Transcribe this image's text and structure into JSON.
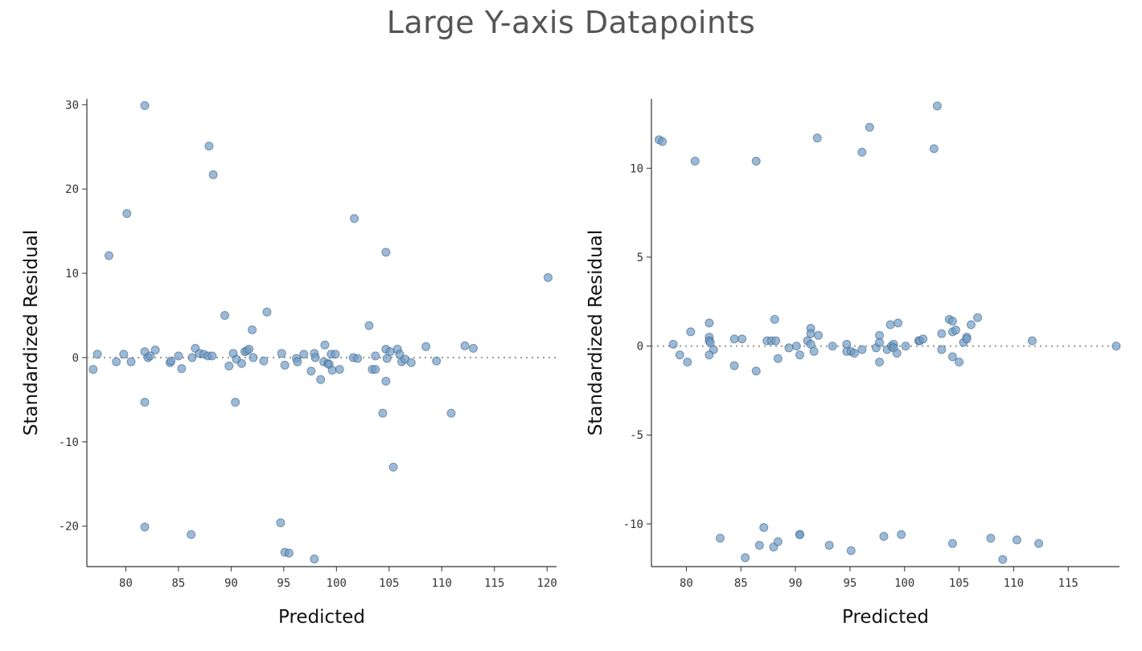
{
  "title": "Large Y-axis Datapoints",
  "colors": {
    "point_fill": "#6f9cc8",
    "point_stroke": "#3f5f80",
    "zero_line": "#999999",
    "axis": "#333333",
    "title": "#555555"
  },
  "chart_data": [
    {
      "type": "scatter",
      "xlabel": "Predicted",
      "ylabel": "Standardized Residual",
      "xlim": [
        76.3,
        120.9
      ],
      "ylim": [
        -24.8,
        30.7
      ],
      "xticks": [
        80,
        85,
        90,
        95,
        100,
        105,
        110,
        115,
        120
      ],
      "yticks": [
        -20,
        -10,
        0,
        10,
        20,
        30
      ],
      "reference_line": {
        "y": 0,
        "style": "dotted"
      },
      "grid": false,
      "points": [
        [
          76.9,
          -1.4
        ],
        [
          77.3,
          0.4
        ],
        [
          78.4,
          12.1
        ],
        [
          79.1,
          -0.5
        ],
        [
          79.8,
          0.4
        ],
        [
          80.1,
          17.1
        ],
        [
          80.5,
          -0.5
        ],
        [
          81.8,
          29.9
        ],
        [
          81.8,
          0.7
        ],
        [
          81.8,
          -5.3
        ],
        [
          81.8,
          -20.1
        ],
        [
          82.1,
          0
        ],
        [
          82.3,
          0.2
        ],
        [
          82.8,
          0.9
        ],
        [
          84.2,
          -0.6
        ],
        [
          84.3,
          -0.4
        ],
        [
          85,
          0.2
        ],
        [
          85.3,
          -1.3
        ],
        [
          86.2,
          -21
        ],
        [
          86.3,
          0
        ],
        [
          86.6,
          1.1
        ],
        [
          87,
          0.5
        ],
        [
          87.4,
          0.4
        ],
        [
          87.8,
          0.2
        ],
        [
          87.9,
          25.1
        ],
        [
          88.2,
          0.2
        ],
        [
          88.3,
          21.7
        ],
        [
          89.4,
          5
        ],
        [
          89.8,
          -1
        ],
        [
          90.2,
          0.5
        ],
        [
          90.4,
          -5.3
        ],
        [
          90.5,
          -0.2
        ],
        [
          91,
          -0.7
        ],
        [
          91.3,
          0.7
        ],
        [
          91.5,
          0.8
        ],
        [
          91.7,
          1
        ],
        [
          92,
          3.3
        ],
        [
          92.1,
          0
        ],
        [
          93.1,
          -0.4
        ],
        [
          93.4,
          5.4
        ],
        [
          94.7,
          -19.6
        ],
        [
          94.8,
          0.5
        ],
        [
          95.1,
          -0.9
        ],
        [
          95.1,
          -23.1
        ],
        [
          95.5,
          -23.2
        ],
        [
          96.2,
          -0.1
        ],
        [
          96.3,
          -0.5
        ],
        [
          96.9,
          0.4
        ],
        [
          97.6,
          -1.6
        ],
        [
          97.9,
          -23.9
        ],
        [
          97.9,
          0.5
        ],
        [
          98,
          0
        ],
        [
          98.5,
          -2.6
        ],
        [
          98.8,
          -0.5
        ],
        [
          98.9,
          1.5
        ],
        [
          99.2,
          -0.7
        ],
        [
          99.3,
          -0.8
        ],
        [
          99.5,
          0.4
        ],
        [
          99.6,
          -1.5
        ],
        [
          99.9,
          0.4
        ],
        [
          100.3,
          -1.4
        ],
        [
          101.6,
          0
        ],
        [
          101.7,
          16.5
        ],
        [
          102,
          -0.1
        ],
        [
          103.1,
          3.8
        ],
        [
          103.4,
          -1.4
        ],
        [
          103.7,
          -1.4
        ],
        [
          103.7,
          0.2
        ],
        [
          104.4,
          -6.6
        ],
        [
          104.7,
          1
        ],
        [
          104.7,
          12.5
        ],
        [
          104.7,
          -2.8
        ],
        [
          104.8,
          -0.1
        ],
        [
          105.1,
          0.7
        ],
        [
          105.4,
          -13
        ],
        [
          105.8,
          1
        ],
        [
          106,
          0.4
        ],
        [
          106.2,
          -0.5
        ],
        [
          106.5,
          -0.2
        ],
        [
          107.1,
          -0.6
        ],
        [
          108.5,
          1.3
        ],
        [
          109.5,
          -0.4
        ],
        [
          110.9,
          -6.6
        ],
        [
          112.2,
          1.4
        ],
        [
          113,
          1.1
        ],
        [
          120.1,
          9.5
        ]
      ]
    },
    {
      "type": "scatter",
      "xlabel": "Predicted",
      "ylabel": "Standardized Residual",
      "xlim": [
        76.8,
        119.7
      ],
      "ylim": [
        -12.4,
        13.9
      ],
      "xticks": [
        80,
        85,
        90,
        95,
        100,
        105,
        110,
        115
      ],
      "yticks": [
        -10,
        -5,
        0,
        5,
        10
      ],
      "reference_line": {
        "y": 0,
        "style": "dotted"
      },
      "grid": false,
      "points": [
        [
          77.5,
          11.6
        ],
        [
          77.8,
          11.5
        ],
        [
          80.8,
          10.4
        ],
        [
          86.4,
          10.4
        ],
        [
          92.0,
          11.7
        ],
        [
          96.1,
          10.9
        ],
        [
          96.8,
          12.3
        ],
        [
          102.7,
          11.1
        ],
        [
          103.0,
          13.5
        ],
        [
          83.1,
          -10.8
        ],
        [
          85.4,
          -11.9
        ],
        [
          86.7,
          -11.2
        ],
        [
          87.1,
          -10.2
        ],
        [
          88.0,
          -11.3
        ],
        [
          88.4,
          -11.0
        ],
        [
          90.4,
          -10.6
        ],
        [
          90.4,
          -10.6
        ],
        [
          93.1,
          -11.2
        ],
        [
          95.1,
          -11.5
        ],
        [
          98.1,
          -10.7
        ],
        [
          99.7,
          -10.6
        ],
        [
          104.4,
          -11.1
        ],
        [
          107.9,
          -10.8
        ],
        [
          109.0,
          -12.0
        ],
        [
          110.3,
          -10.9
        ],
        [
          112.3,
          -11.1
        ],
        [
          78.8,
          0.1
        ],
        [
          79.4,
          -0.5
        ],
        [
          80.1,
          -0.9
        ],
        [
          80.4,
          0.8
        ],
        [
          82.1,
          1.3
        ],
        [
          82.1,
          0.5
        ],
        [
          82.1,
          0.3
        ],
        [
          82.2,
          0.2
        ],
        [
          82.5,
          -0.2
        ],
        [
          82.1,
          -0.5
        ],
        [
          84.4,
          0.4
        ],
        [
          84.4,
          -1.1
        ],
        [
          85.1,
          0.4
        ],
        [
          86.4,
          -1.4
        ],
        [
          87.4,
          0.3
        ],
        [
          87.8,
          0.3
        ],
        [
          88.1,
          1.5
        ],
        [
          88.2,
          0.3
        ],
        [
          88.4,
          -0.7
        ],
        [
          89.4,
          -0.1
        ],
        [
          90.1,
          0.0
        ],
        [
          90.4,
          -0.5
        ],
        [
          91.1,
          0.3
        ],
        [
          91.4,
          1.0
        ],
        [
          91.4,
          0.7
        ],
        [
          91.4,
          0.1
        ],
        [
          91.7,
          -0.3
        ],
        [
          92.1,
          0.6
        ],
        [
          93.4,
          0.0
        ],
        [
          94.7,
          0.1
        ],
        [
          94.7,
          -0.3
        ],
        [
          95.1,
          -0.3
        ],
        [
          95.4,
          -0.4
        ],
        [
          96.1,
          -0.2
        ],
        [
          97.4,
          -0.1
        ],
        [
          97.7,
          0.6
        ],
        [
          97.7,
          0.2
        ],
        [
          97.7,
          -0.9
        ],
        [
          98.4,
          -0.2
        ],
        [
          98.7,
          1.2
        ],
        [
          98.8,
          0.0
        ],
        [
          99.0,
          0.1
        ],
        [
          99.0,
          -0.1
        ],
        [
          99.3,
          -0.4
        ],
        [
          99.4,
          1.3
        ],
        [
          100.1,
          0.0
        ],
        [
          101.3,
          0.3
        ],
        [
          101.4,
          0.3
        ],
        [
          101.7,
          0.4
        ],
        [
          103.4,
          0.7
        ],
        [
          103.4,
          -0.2
        ],
        [
          104.1,
          1.5
        ],
        [
          104.4,
          1.4
        ],
        [
          104.4,
          0.8
        ],
        [
          104.7,
          0.9
        ],
        [
          104.4,
          -0.6
        ],
        [
          105.0,
          -0.9
        ],
        [
          105.4,
          0.2
        ],
        [
          105.7,
          0.5
        ],
        [
          105.7,
          0.4
        ],
        [
          106.1,
          1.2
        ],
        [
          106.7,
          1.6
        ],
        [
          111.7,
          0.3
        ],
        [
          119.4,
          0.0
        ]
      ]
    }
  ]
}
